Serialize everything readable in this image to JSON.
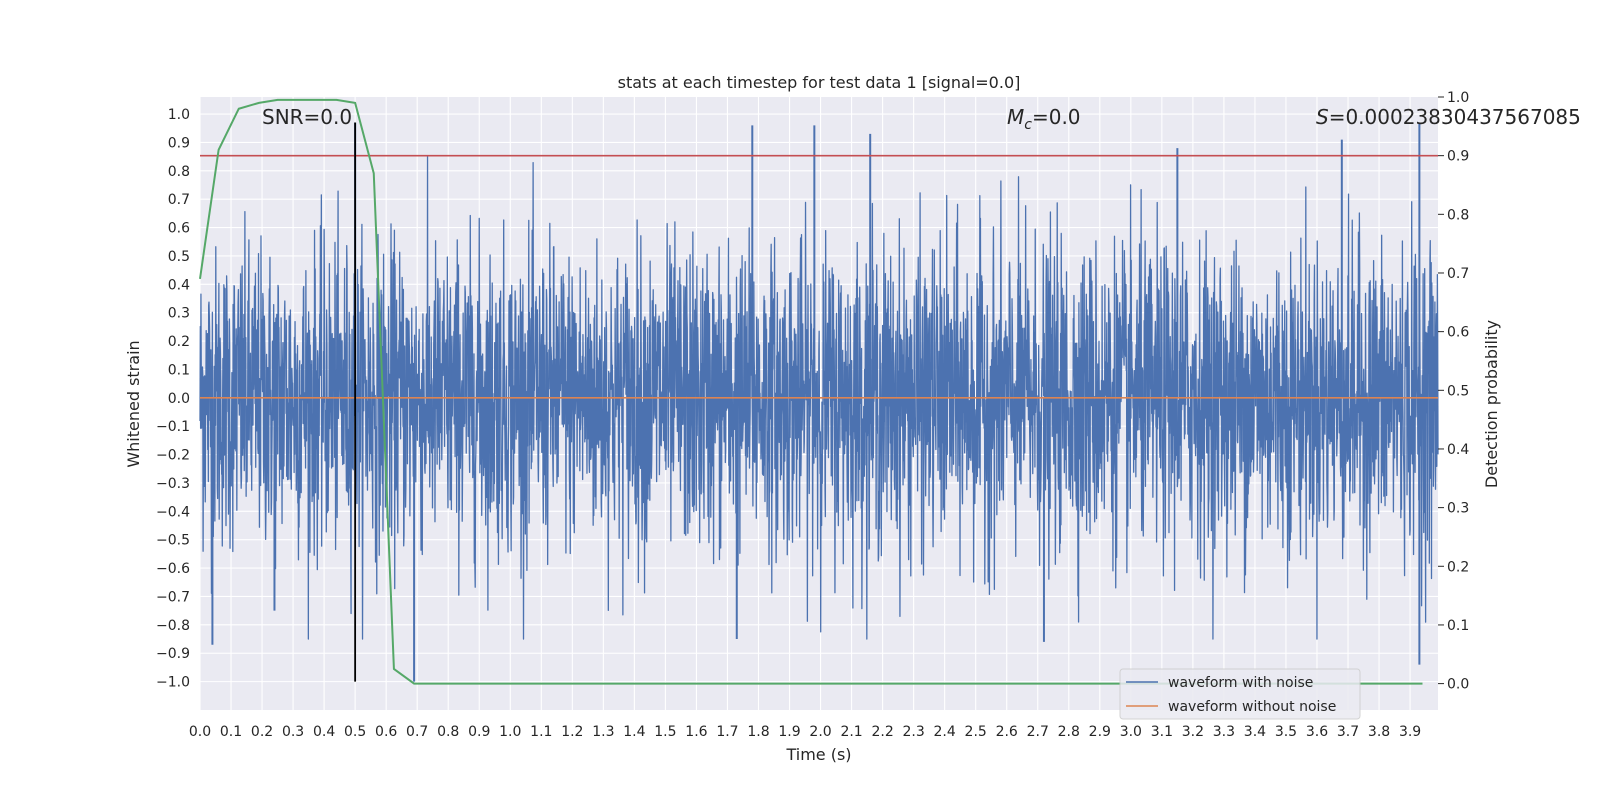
{
  "chart_data": {
    "type": "line",
    "title": "stats at each timestep for test data 1 [signal=0.0]",
    "xlabel": "Time (s)",
    "ylabel_left": "Whitened strain",
    "ylabel_right": "Detection probability",
    "xlim": [
      0.0,
      3.99
    ],
    "ylim_left": [
      -1.1,
      1.06
    ],
    "ylim_right": [
      -0.045,
      1.0
    ],
    "x_ticks": [
      "0.0",
      "0.1",
      "0.2",
      "0.3",
      "0.4",
      "0.5",
      "0.6",
      "0.7",
      "0.8",
      "0.9",
      "1.0",
      "1.1",
      "1.2",
      "1.3",
      "1.4",
      "1.5",
      "1.6",
      "1.7",
      "1.8",
      "1.9",
      "2.0",
      "2.1",
      "2.2",
      "2.3",
      "2.4",
      "2.5",
      "2.6",
      "2.7",
      "2.8",
      "2.9",
      "3.0",
      "3.1",
      "3.2",
      "3.3",
      "3.4",
      "3.5",
      "3.6",
      "3.7",
      "3.8",
      "3.9"
    ],
    "y_ticks_left": [
      "1.0",
      "0.9",
      "0.8",
      "0.7",
      "0.6",
      "0.5",
      "0.4",
      "0.3",
      "0.2",
      "0.1",
      "0.0",
      "−0.1",
      "−0.2",
      "−0.3",
      "−0.4",
      "−0.5",
      "−0.6",
      "−0.7",
      "−0.8",
      "−0.9",
      "−1.0"
    ],
    "y_ticks_right": [
      "1.0",
      "0.9",
      "0.8",
      "0.7",
      "0.6",
      "0.5",
      "0.4",
      "0.3",
      "0.2",
      "0.1",
      "0.0"
    ],
    "grid": true,
    "legend_position": "lower right",
    "annotations": {
      "snr": "SNR=0.0",
      "mc_symbol": "M",
      "mc_sub": "c",
      "mc_value": "=0.0",
      "s_symbol": "S",
      "s_value": "=0.00023830437567085"
    },
    "threshold": {
      "value": 0.9,
      "axis": "right",
      "color": "#c44e52"
    },
    "event_marker": {
      "x": 0.5,
      "y_from": -1.0,
      "y_to": 0.97,
      "color": "#000000"
    },
    "series": [
      {
        "name": "waveform with noise",
        "axis": "left",
        "color": "#4c72b0",
        "style": "dense noise",
        "amplitude_envelope": {
          "typical_range": [
            -0.5,
            0.55
          ],
          "extremes": [
            -1.0,
            0.97
          ]
        },
        "sample_peaks": [
          {
            "x": 0.04,
            "y": -0.87
          },
          {
            "x": 0.24,
            "y": -0.75
          },
          {
            "x": 0.5,
            "y": 0.97
          },
          {
            "x": 0.69,
            "y": -1.0
          },
          {
            "x": 1.73,
            "y": -0.85
          },
          {
            "x": 1.78,
            "y": 0.96
          },
          {
            "x": 1.98,
            "y": 0.96
          },
          {
            "x": 2.16,
            "y": 0.93
          },
          {
            "x": 2.72,
            "y": -0.86
          },
          {
            "x": 3.15,
            "y": 0.88
          },
          {
            "x": 3.68,
            "y": 0.91
          },
          {
            "x": 3.93,
            "y": 0.97
          },
          {
            "x": 3.93,
            "y": -0.94
          }
        ]
      },
      {
        "name": "waveform without noise",
        "axis": "left",
        "color": "#dd8452",
        "x": [
          0.0,
          3.99
        ],
        "y": [
          0.0,
          0.0
        ]
      },
      {
        "name": "",
        "axis": "right",
        "color": "#55a868",
        "x": [
          0.0,
          0.06,
          0.125,
          0.19,
          0.25,
          0.31,
          0.375,
          0.44,
          0.5,
          0.56,
          0.625,
          0.69,
          0.75,
          1.0,
          2.0,
          3.0,
          3.94
        ],
        "y": [
          0.69,
          0.91,
          0.98,
          0.99,
          0.995,
          0.995,
          0.995,
          0.995,
          0.99,
          0.87,
          0.025,
          0.0,
          0.0,
          0.0,
          0.0,
          0.0,
          0.0
        ]
      }
    ]
  }
}
